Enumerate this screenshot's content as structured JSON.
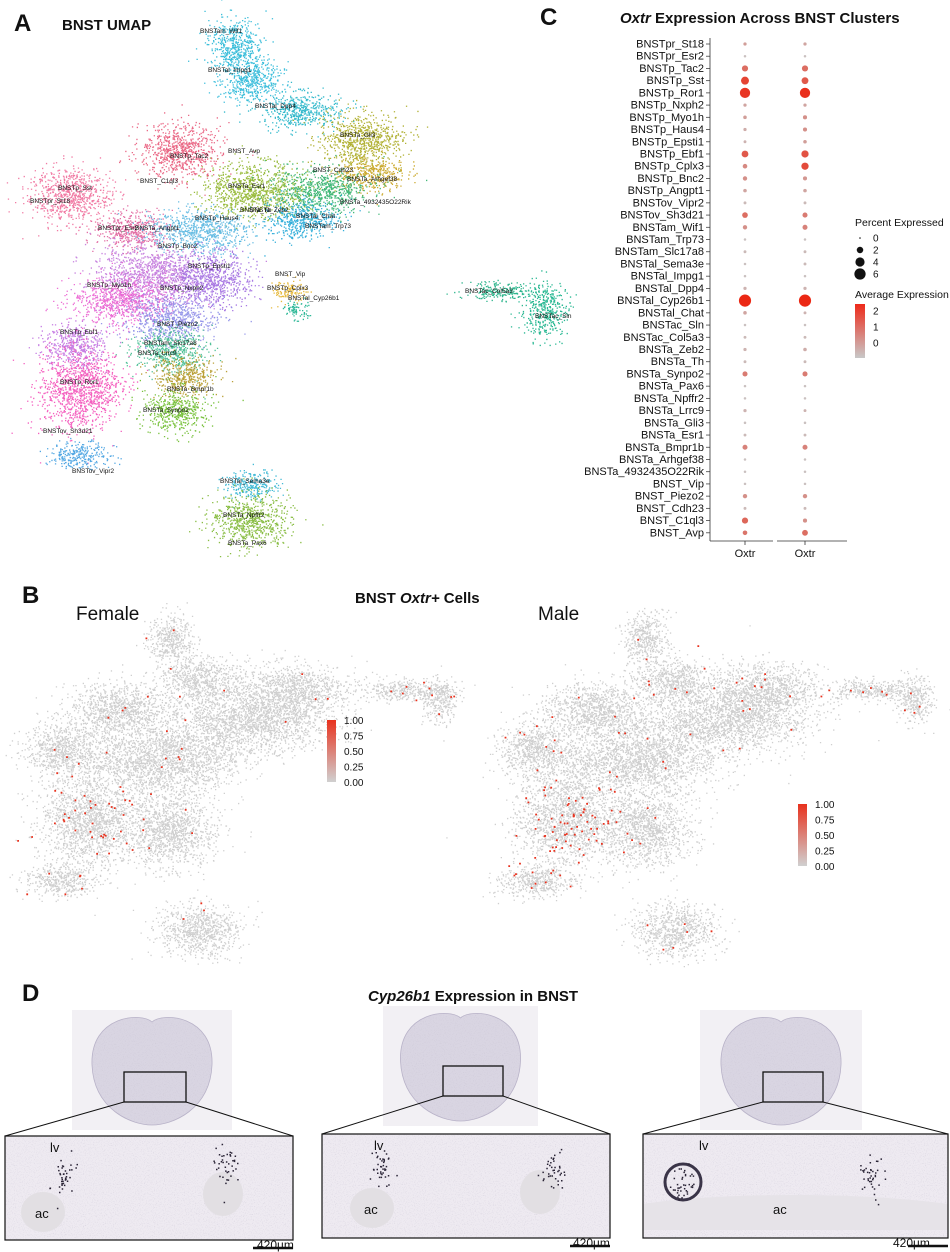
{
  "panelA": {
    "letter": "A",
    "title": "BNST UMAP",
    "cluster_labels": [
      "BNSTam_Wif1",
      "BNSTal_Impg1",
      "BNSTal_Dpp4",
      "BNSTa_Gli3",
      "BNST_Avp",
      "BNSTp_Tac2",
      "BNST_Cdh23",
      "BNSTa_Arhgef38",
      "BNST_C1ql3",
      "BNSTa_Esr1",
      "BNSTa_4932435O22Rik",
      "BNSTp_Sst",
      "BNSTpr_St18",
      "BNSTa_Th",
      "BNSTa_Zeb2",
      "BNSTal_Chat",
      "BNSTam_Trp73",
      "BNSTpr_Esr2",
      "BNSTa_Angpt1",
      "BNSTp_Haus4",
      "BNSTp_Bnc2",
      "BNST_Vip",
      "BNSTp_Epsti1",
      "BNSTp_Myo1h",
      "BNSTp_Nxph2",
      "BNSTp_Cplx3",
      "BNSTal_Cyp26b1",
      "BNSTac_Col5a3",
      "BNSTac_Sln",
      "BNSTp_Ebf1",
      "BNST_Piezo2",
      "BNSTam_Slc17a8",
      "BNSTa_Lrrc9",
      "BNSTp_Ror1",
      "BNSTa_Bmpr1b",
      "BNSTa_Synpo2",
      "BNSTov_Sh3d21",
      "BNSTov_Vipr2",
      "BNSTal_Sema3e",
      "BNSTa_Npffr2",
      "BNSTa_Pax6"
    ]
  },
  "panelB": {
    "letter": "B",
    "title_prefix": "BNST ",
    "title_gene": "Oxtr+",
    "title_suffix": " Cells",
    "female_label": "Female",
    "male_label": "Male",
    "colorbar_ticks": [
      "1.00",
      "0.75",
      "0.50",
      "0.25",
      "0.00"
    ],
    "colors": {
      "high": "#e8321e",
      "low": "#d0d0d0"
    }
  },
  "panelC": {
    "letter": "C",
    "title_gene": "Oxtr",
    "title_suffix": " Expression Across BNST Clusters",
    "x_labels": [
      "Oxtr",
      "Oxtr"
    ],
    "legend_percent_title": "Percent Expressed",
    "legend_percent_values": [
      "0",
      "2",
      "4",
      "6"
    ],
    "legend_avg_title": "Average Expression",
    "legend_avg_ticks": [
      "2",
      "1",
      "0"
    ]
  },
  "panelD": {
    "letter": "D",
    "title_gene": "Cyp26b1",
    "title_suffix": " Expression in BNST",
    "lv_label": "lv",
    "ac_label": "ac",
    "scalebar_label": "420µm"
  },
  "chart_data": [
    {
      "type": "scatter",
      "title": "Oxtr Expression Across BNST Clusters",
      "xlabel": "",
      "ylabel": "",
      "categories": [
        "BNSTpr_St18",
        "BNSTpr_Esr2",
        "BNSTp_Tac2",
        "BNSTp_Sst",
        "BNSTp_Ror1",
        "BNSTp_Nxph2",
        "BNSTp_Myo1h",
        "BNSTp_Haus4",
        "BNSTp_Epsti1",
        "BNSTp_Ebf1",
        "BNSTp_Cplx3",
        "BNSTp_Bnc2",
        "BNSTp_Angpt1",
        "BNSTov_Vipr2",
        "BNSTov_Sh3d21",
        "BNSTam_Wif1",
        "BNSTam_Trp73",
        "BNSTam_Slc17a8",
        "BNSTal_Sema3e",
        "BNSTal_Impg1",
        "BNSTal_Dpp4",
        "BNSTal_Cyp26b1",
        "BNSTal_Chat",
        "BNSTac_Sln",
        "BNSTac_Col5a3",
        "BNSTa_Zeb2",
        "BNSTa_Th",
        "BNSTa_Synpo2",
        "BNSTa_Pax6",
        "BNSTa_Npffr2",
        "BNSTa_Lrrc9",
        "BNSTa_Gli3",
        "BNSTa_Esr1",
        "BNSTa_Bmpr1b",
        "BNSTa_Arhgef38",
        "BNSTa_4932435O22Rik",
        "BNST_Vip",
        "BNST_Piezo2",
        "BNST_Cdh23",
        "BNST_C1ql3",
        "BNST_Avp"
      ],
      "columns": [
        "Oxtr",
        "Oxtr"
      ],
      "series": [
        {
          "percent_expressed": [
            0.5,
            0.3,
            1.8,
            3.0,
            5.0,
            0.5,
            0.6,
            0.5,
            0.4,
            2.2,
            1.0,
            0.9,
            0.6,
            0.4,
            1.5,
            0.9,
            0.3,
            0.4,
            0.3,
            0.3,
            0.5,
            7.0,
            0.6,
            0.3,
            0.4,
            0.5,
            0.4,
            1.2,
            0.3,
            0.3,
            0.5,
            0.3,
            0.4,
            1.2,
            0.3,
            0.3,
            0.3,
            0.9,
            0.4,
            1.8,
            1.0
          ],
          "avg_expression": [
            0.6,
            0.1,
            1.3,
            1.9,
            2.1,
            0.5,
            0.6,
            0.4,
            0.3,
            1.6,
            0.9,
            0.8,
            0.5,
            0.2,
            1.3,
            0.8,
            0.1,
            0.2,
            0.1,
            0.1,
            0.3,
            2.3,
            0.5,
            0.1,
            0.2,
            0.3,
            0.2,
            1.1,
            0.1,
            0.1,
            0.3,
            0.1,
            0.2,
            1.0,
            0.1,
            0.1,
            0.1,
            0.8,
            0.2,
            1.4,
            1.2
          ]
        },
        {
          "percent_expressed": [
            0.5,
            0.3,
            1.8,
            2.2,
            5.0,
            0.5,
            0.8,
            0.8,
            0.6,
            2.5,
            2.5,
            0.8,
            0.6,
            0.4,
            1.2,
            1.2,
            0.3,
            0.4,
            0.4,
            0.3,
            0.5,
            7.0,
            0.4,
            0.3,
            0.4,
            0.6,
            0.4,
            1.2,
            0.3,
            0.3,
            0.4,
            0.3,
            0.4,
            1.2,
            0.3,
            0.3,
            0.3,
            0.9,
            0.4,
            0.8,
            1.6
          ],
          "avg_expression": [
            0.5,
            0.1,
            1.3,
            1.6,
            2.2,
            0.5,
            0.8,
            0.8,
            0.6,
            1.7,
            1.8,
            0.7,
            0.5,
            0.2,
            1.1,
            1.0,
            0.1,
            0.2,
            0.2,
            0.1,
            0.3,
            2.3,
            0.3,
            0.1,
            0.2,
            0.4,
            0.2,
            1.1,
            0.1,
            0.1,
            0.3,
            0.1,
            0.2,
            1.0,
            0.1,
            0.1,
            0.1,
            0.8,
            0.2,
            0.8,
            1.3
          ]
        }
      ],
      "legend": {
        "size_title": "Percent Expressed",
        "size_values": [
          0,
          2,
          4,
          6
        ],
        "color_title": "Average Expression",
        "color_range": [
          0,
          2.3
        ]
      }
    }
  ]
}
